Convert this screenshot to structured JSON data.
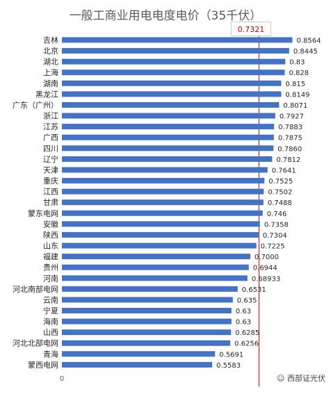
{
  "chart_data": {
    "type": "bar",
    "orientation": "horizontal",
    "title": "一般工商业用电电度电价（35千伏）",
    "xlabel": "",
    "ylabel": "",
    "xlim": [
      0,
      0.8564
    ],
    "x_tick_labels": [
      "0"
    ],
    "categories": [
      "吉林",
      "北京",
      "湖北",
      "上海",
      "湖南",
      "黑龙江",
      "广东（广州）",
      "浙江",
      "江苏",
      "广西",
      "四川",
      "辽宁",
      "天津",
      "重庆",
      "江西",
      "甘肃",
      "蒙东电网",
      "安徽",
      "陕西",
      "山东",
      "福建",
      "贵州",
      "河南",
      "河北南部电网",
      "云南",
      "宁夏",
      "海南",
      "山西",
      "河北北部电网",
      "青海",
      "蒙西电网"
    ],
    "values": [
      0.8564,
      0.8445,
      0.83,
      0.828,
      0.815,
      0.8149,
      0.8071,
      0.7927,
      0.7883,
      0.7875,
      0.786,
      0.7812,
      0.7641,
      0.7525,
      0.7502,
      0.7488,
      0.746,
      0.7358,
      0.7304,
      0.7225,
      0.7,
      0.6944,
      0.68933,
      0.6531,
      0.635,
      0.63,
      0.63,
      0.6285,
      0.6256,
      0.5691,
      0.5583
    ],
    "value_labels": [
      "0.8564",
      "0.8445",
      "0.83",
      "0.828",
      "0.815",
      "0.8149",
      "0.8071",
      "0.7927",
      "0.7883",
      "0.7875",
      "0.7860",
      "0.7812",
      "0.7641",
      "0.7525",
      "0.7502",
      "0.7488",
      "0.746",
      "0.7358",
      "0.7304",
      "0.7225",
      "0.7000",
      "0.6944",
      "0.68933",
      "0.6531",
      "0.635",
      "0.63",
      "0.63",
      "0.6285",
      "0.6256",
      "0.5691",
      "0.5583"
    ],
    "reference_line": {
      "value": 0.7321,
      "label": "0.7321",
      "color": "#c00000"
    },
    "bar_color": "#4472c4",
    "grid": false,
    "legend": "none"
  },
  "watermark": "☺ 西部证光伏"
}
